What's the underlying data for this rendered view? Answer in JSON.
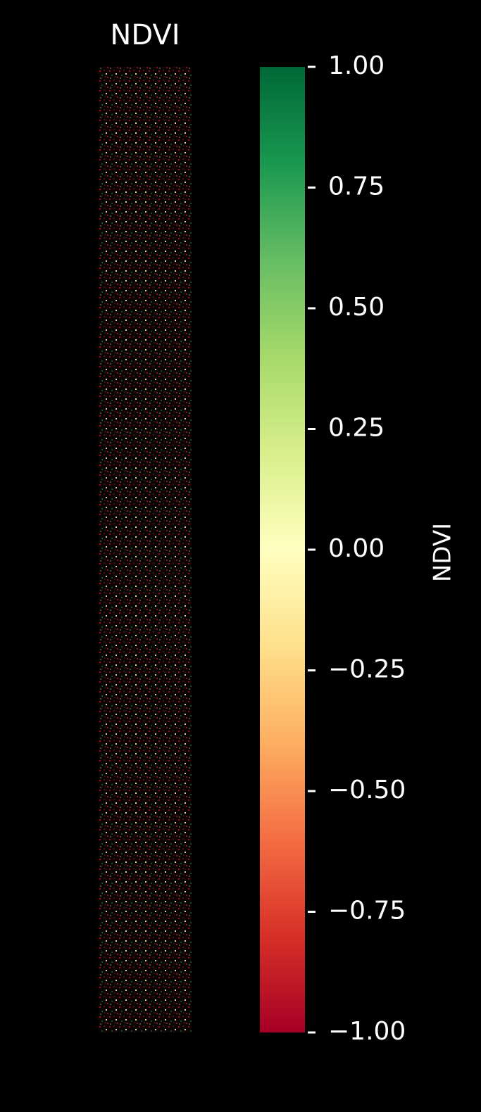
{
  "chart_data": {
    "type": "image",
    "title": "NDVI",
    "colorbar": {
      "label": "NDVI",
      "colormap": "RdYlGn",
      "vlim": [
        -1,
        1
      ],
      "ticks": [
        {
          "value": -1,
          "label": "−1.00"
        },
        {
          "value": -0.75,
          "label": "−0.75"
        },
        {
          "value": -0.5,
          "label": "−0.50"
        },
        {
          "value": -0.25,
          "label": "−0.25"
        },
        {
          "value": 0,
          "label": "0.00"
        },
        {
          "value": 0.25,
          "label": "0.25"
        },
        {
          "value": 0.5,
          "label": "0.50"
        },
        {
          "value": 0.75,
          "label": "0.75"
        },
        {
          "value": 1,
          "label": "1.00"
        }
      ]
    }
  }
}
